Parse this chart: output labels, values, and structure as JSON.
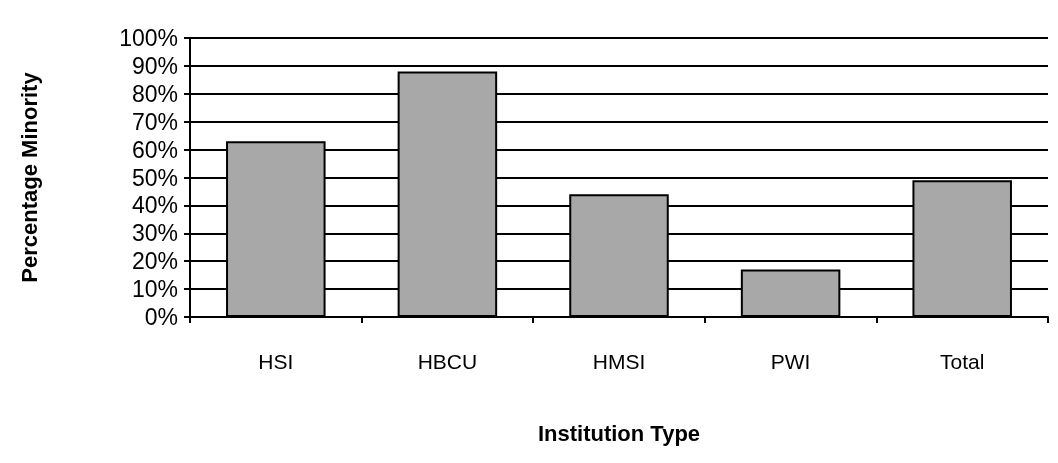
{
  "chart_data": {
    "type": "bar",
    "xlabel": "Institution Type",
    "ylabel": "Percentage Minority",
    "categories": [
      "HSI",
      "HBCU",
      "HMSI",
      "PWI",
      "Total"
    ],
    "values": [
      63,
      88,
      44,
      17,
      49
    ],
    "color": "#a8a8a8",
    "ylim": [
      0,
      100
    ],
    "yticks": [
      {
        "value": 0,
        "label": "0%"
      },
      {
        "value": 10,
        "label": "10%"
      },
      {
        "value": 20,
        "label": "20%"
      },
      {
        "value": 30,
        "label": "30%"
      },
      {
        "value": 40,
        "label": "40%"
      },
      {
        "value": 50,
        "label": "50%"
      },
      {
        "value": 60,
        "label": "60%"
      },
      {
        "value": 70,
        "label": "70%"
      },
      {
        "value": 80,
        "label": "80%"
      },
      {
        "value": 90,
        "label": "90%"
      },
      {
        "value": 100,
        "label": "100%"
      }
    ],
    "grid": "y"
  }
}
